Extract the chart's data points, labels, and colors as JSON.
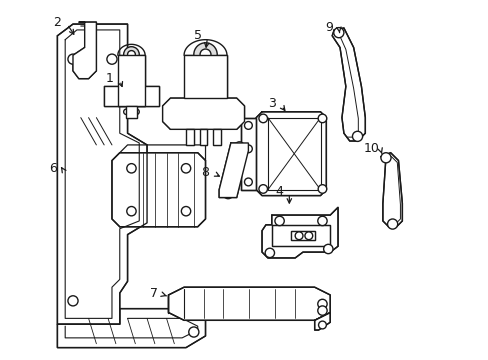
{
  "background_color": "#ffffff",
  "line_color": "#1a1a1a",
  "lw": 1.0,
  "figsize": [
    4.89,
    3.6
  ],
  "dpi": 100
}
